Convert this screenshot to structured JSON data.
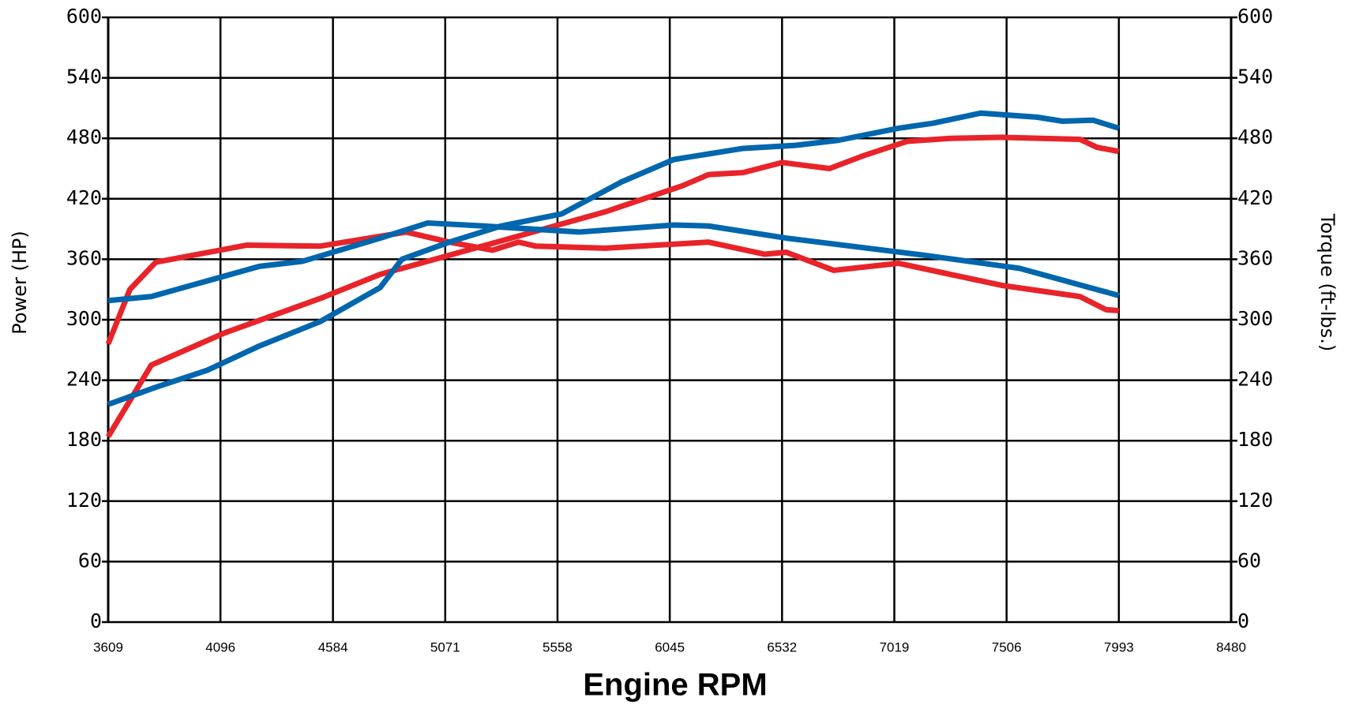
{
  "chart_data": {
    "type": "line",
    "xlabel": "Engine RPM",
    "ylabel": "Power (HP)",
    "y2label": "Torque (ft-lbs.)",
    "xlim": [
      3609,
      8480
    ],
    "xticks": [
      3609,
      4096,
      4584,
      5071,
      5558,
      6045,
      6532,
      7019,
      7506,
      7993,
      8480
    ],
    "ylim": [
      0,
      600
    ],
    "yticks": [
      0,
      60,
      120,
      180,
      240,
      300,
      360,
      420,
      480,
      540,
      600
    ],
    "y2lim": [
      0,
      600
    ],
    "y2ticks": [
      0,
      60,
      120,
      180,
      240,
      300,
      360,
      420,
      480,
      540,
      600
    ],
    "grid": true,
    "series": [
      {
        "color": "#e8232a",
        "axis": "y",
        "x": [
          3609,
          3796,
          4115,
          4527,
          4789,
          5089,
          5389,
          5764,
          6101,
          6213,
          6363,
          6532,
          6738,
          6888,
          7075,
          7262,
          7487,
          7824,
          7899,
          7993
        ],
        "values": [
          184,
          255,
          287,
          321,
          345,
          364,
          383,
          407,
          433,
          444,
          446,
          456,
          450,
          463,
          477,
          480,
          481,
          479,
          471,
          467
        ]
      },
      {
        "color": "#e8232a",
        "axis": "y2",
        "x": [
          3609,
          3703,
          3815,
          4209,
          4527,
          4902,
          5089,
          5276,
          5389,
          5464,
          5764,
          6213,
          6457,
          6550,
          6756,
          7037,
          7487,
          7824,
          7937,
          7993
        ],
        "values": [
          276,
          330,
          357,
          374,
          373,
          387,
          377,
          369,
          377,
          373,
          371,
          377,
          365,
          367,
          349,
          356,
          334,
          323,
          310,
          309
        ]
      },
      {
        "color": "#0066ad",
        "axis": "y",
        "x": [
          3609,
          3815,
          4040,
          4265,
          4527,
          4789,
          4883,
          5089,
          5314,
          5576,
          5838,
          6063,
          6363,
          6588,
          6775,
          7037,
          7187,
          7393,
          7637,
          7749,
          7881,
          7993
        ],
        "values": [
          216,
          233,
          250,
          274,
          298,
          332,
          360,
          377,
          393,
          405,
          437,
          459,
          470,
          473,
          478,
          490,
          495,
          505,
          501,
          497,
          498,
          490
        ]
      },
      {
        "color": "#0066ad",
        "axis": "y2",
        "x": [
          3609,
          3796,
          4265,
          4452,
          4789,
          4995,
          5239,
          5651,
          6063,
          6213,
          6550,
          7150,
          7562,
          7993
        ],
        "values": [
          319,
          323,
          353,
          358,
          381,
          396,
          393,
          387,
          394,
          393,
          381,
          364,
          351,
          324
        ]
      }
    ]
  }
}
